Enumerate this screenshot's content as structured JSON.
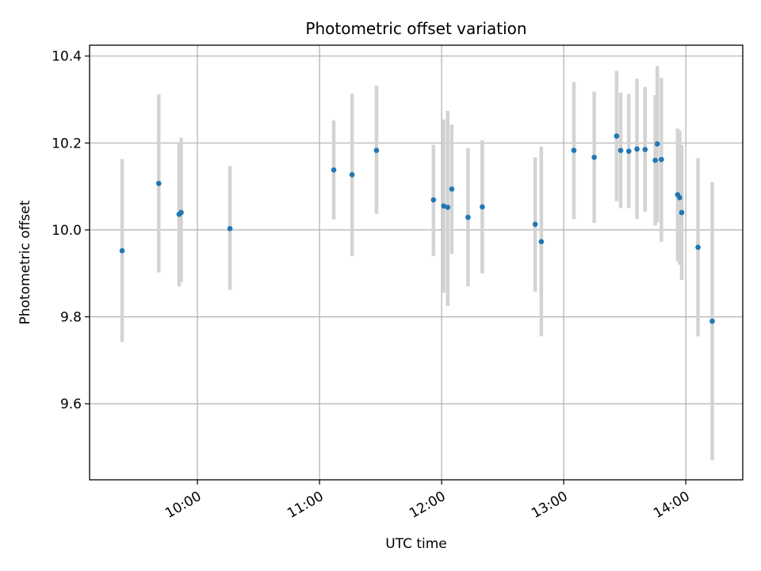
{
  "chart_data": {
    "type": "scatter",
    "title": "Photometric offset variation",
    "xlabel": "UTC time",
    "ylabel": "Photometric offset",
    "x_range": [
      "09:07",
      "14:28"
    ],
    "ylim": [
      9.425,
      10.425
    ],
    "x_ticks": [
      "10:00",
      "11:00",
      "12:00",
      "13:00",
      "14:00"
    ],
    "y_ticks": [
      "9.6",
      "9.8",
      "10.0",
      "10.2",
      "10.4"
    ],
    "grid": true,
    "colors": {
      "marker": "#1f77b4",
      "errorbar": "#d3d3d3"
    },
    "points": [
      {
        "t": "09:23",
        "y": 9.952,
        "ylo": 9.742,
        "yhi": 10.163
      },
      {
        "t": "09:41",
        "y": 10.107,
        "ylo": 9.902,
        "yhi": 10.312
      },
      {
        "t": "09:51",
        "y": 10.036,
        "ylo": 9.87,
        "yhi": 10.2
      },
      {
        "t": "09:52",
        "y": 10.04,
        "ylo": 9.88,
        "yhi": 10.212
      },
      {
        "t": "10:16",
        "y": 10.003,
        "ylo": 9.862,
        "yhi": 10.147
      },
      {
        "t": "11:07",
        "y": 10.138,
        "ylo": 10.024,
        "yhi": 10.252
      },
      {
        "t": "11:16",
        "y": 10.127,
        "ylo": 9.94,
        "yhi": 10.313
      },
      {
        "t": "11:28",
        "y": 10.183,
        "ylo": 10.037,
        "yhi": 10.332
      },
      {
        "t": "11:56",
        "y": 10.069,
        "ylo": 9.94,
        "yhi": 10.196
      },
      {
        "t": "12:01",
        "y": 10.055,
        "ylo": 9.855,
        "yhi": 10.254
      },
      {
        "t": "12:03",
        "y": 10.052,
        "ylo": 9.825,
        "yhi": 10.274
      },
      {
        "t": "12:05",
        "y": 10.094,
        "ylo": 9.945,
        "yhi": 10.242
      },
      {
        "t": "12:13",
        "y": 10.029,
        "ylo": 9.87,
        "yhi": 10.188
      },
      {
        "t": "12:20",
        "y": 10.053,
        "ylo": 9.9,
        "yhi": 10.206
      },
      {
        "t": "12:46",
        "y": 10.013,
        "ylo": 9.858,
        "yhi": 10.167
      },
      {
        "t": "12:49",
        "y": 9.973,
        "ylo": 9.755,
        "yhi": 10.192
      },
      {
        "t": "13:05",
        "y": 10.183,
        "ylo": 10.025,
        "yhi": 10.34
      },
      {
        "t": "13:15",
        "y": 10.167,
        "ylo": 10.016,
        "yhi": 10.318
      },
      {
        "t": "13:26",
        "y": 10.216,
        "ylo": 10.066,
        "yhi": 10.366
      },
      {
        "t": "13:28",
        "y": 10.183,
        "ylo": 10.05,
        "yhi": 10.316
      },
      {
        "t": "13:32",
        "y": 10.181,
        "ylo": 10.05,
        "yhi": 10.313
      },
      {
        "t": "13:36",
        "y": 10.186,
        "ylo": 10.025,
        "yhi": 10.348
      },
      {
        "t": "13:40",
        "y": 10.185,
        "ylo": 10.042,
        "yhi": 10.329
      },
      {
        "t": "13:45",
        "y": 10.16,
        "ylo": 10.01,
        "yhi": 10.31
      },
      {
        "t": "13:46",
        "y": 10.198,
        "ylo": 10.018,
        "yhi": 10.377
      },
      {
        "t": "13:48",
        "y": 10.162,
        "ylo": 9.973,
        "yhi": 10.35
      },
      {
        "t": "13:56",
        "y": 10.081,
        "ylo": 9.928,
        "yhi": 10.233
      },
      {
        "t": "13:57",
        "y": 10.074,
        "ylo": 9.92,
        "yhi": 10.228
      },
      {
        "t": "13:58",
        "y": 10.04,
        "ylo": 9.885,
        "yhi": 10.195
      },
      {
        "t": "14:06",
        "y": 9.96,
        "ylo": 9.755,
        "yhi": 10.165
      },
      {
        "t": "14:13",
        "y": 9.79,
        "ylo": 9.47,
        "yhi": 10.11
      }
    ]
  }
}
